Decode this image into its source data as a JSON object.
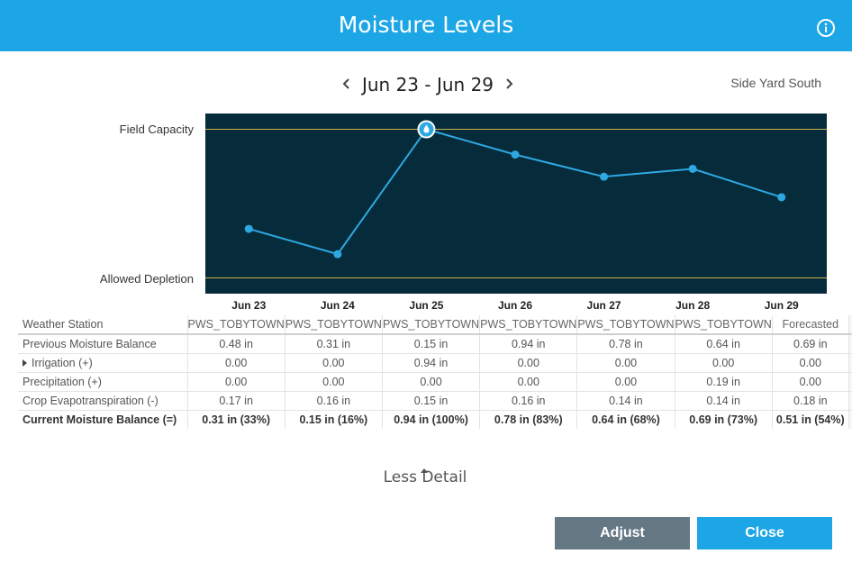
{
  "header": {
    "title": "Moisture Levels",
    "info_icon": "info-circle-icon"
  },
  "nav": {
    "date_range": "Jun 23 - Jun 29",
    "prev_icon": "chevron-left-icon",
    "next_icon": "chevron-right-icon"
  },
  "zone": "Side Yard South",
  "chart_data": {
    "type": "line",
    "categories": [
      "Jun 23",
      "Jun 24",
      "Jun 25",
      "Jun 26",
      "Jun 27",
      "Jun 28",
      "Jun 29"
    ],
    "series": [
      {
        "values": [
          0.31,
          0.15,
          0.94,
          0.78,
          0.64,
          0.69,
          0.51
        ]
      }
    ],
    "reference_lines": [
      {
        "label": "Field Capacity",
        "value": 0.94
      },
      {
        "label": "Allowed Depletion",
        "value": 0.0
      }
    ],
    "ylim": [
      -0.1,
      1.04
    ],
    "marker_icon": "water-drop-icon",
    "colors": {
      "background": "#062b3b",
      "line": "#2ea8e0",
      "reference": "#c9b54a"
    }
  },
  "table": {
    "days": [
      "Jun 23",
      "Jun 24",
      "Jun 25",
      "Jun 26",
      "Jun 27",
      "Jun 28",
      "Jun 29"
    ],
    "rows": [
      {
        "label": "Weather Station",
        "values": [
          "PWS_TOBYTOWN",
          "PWS_TOBYTOWN",
          "PWS_TOBYTOWN",
          "PWS_TOBYTOWN",
          "PWS_TOBYTOWN",
          "PWS_TOBYTOWN",
          "Forecasted"
        ]
      },
      {
        "label": "Previous Moisture Balance",
        "values": [
          "0.48 in",
          "0.31 in",
          "0.15 in",
          "0.94 in",
          "0.78 in",
          "0.64 in",
          "0.69 in"
        ]
      },
      {
        "label": "Irrigation (+)",
        "values": [
          "0.00",
          "0.00",
          "0.94 in",
          "0.00",
          "0.00",
          "0.00",
          "0.00"
        ]
      },
      {
        "label": "Precipitation (+)",
        "values": [
          "0.00",
          "0.00",
          "0.00",
          "0.00",
          "0.00",
          "0.19 in",
          "0.00"
        ]
      },
      {
        "label": "Crop Evapotranspiration (-)",
        "values": [
          "0.17 in",
          "0.16 in",
          "0.15 in",
          "0.16 in",
          "0.14 in",
          "0.14 in",
          "0.18 in"
        ]
      },
      {
        "label": "Current Moisture Balance (=)",
        "values": [
          "0.31 in (33%)",
          "0.15 in (16%)",
          "0.94 in (100%)",
          "0.78 in (83%)",
          "0.64 in (68%)",
          "0.69 in (73%)",
          "0.51 in (54%)"
        ]
      }
    ]
  },
  "less_detail": "Less Detail",
  "buttons": {
    "adjust": "Adjust",
    "close": "Close"
  }
}
